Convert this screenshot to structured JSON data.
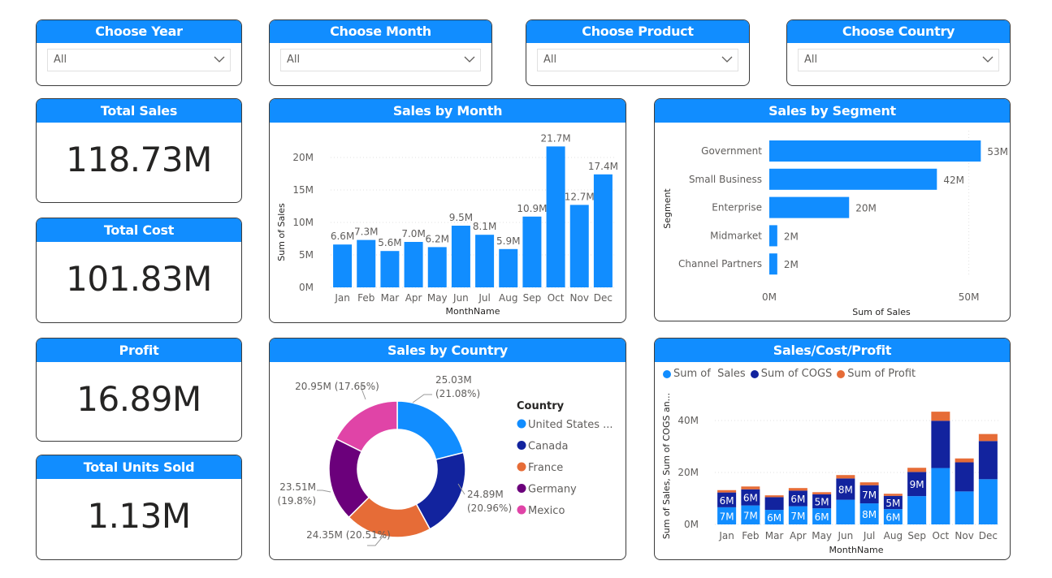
{
  "colors": {
    "accent": "#118dff",
    "dark_blue": "#12239e",
    "orange": "#e66c37",
    "purple": "#6b007b",
    "pink": "#e044a7"
  },
  "slicers": [
    {
      "title": "Choose Year",
      "value": "All"
    },
    {
      "title": "Choose Month",
      "value": "All"
    },
    {
      "title": "Choose Product",
      "value": "All"
    },
    {
      "title": "Choose Country",
      "value": "All"
    }
  ],
  "kpis": [
    {
      "title": "Total Sales",
      "value": "118.73M"
    },
    {
      "title": "Total Cost",
      "value": "101.83M"
    },
    {
      "title": "Profit",
      "value": "16.89M"
    },
    {
      "title": "Total Units Sold",
      "value": "1.13M"
    }
  ],
  "chart_titles": {
    "month": "Sales by Month",
    "segment": "Sales by Segment",
    "country": "Sales by Country",
    "scp": "Sales/Cost/Profit"
  },
  "chart_data": [
    {
      "id": "sales_by_month",
      "type": "bar",
      "title": "Sales by Month",
      "xlabel": "MonthName",
      "ylabel": "Sum of Sales",
      "ylim": [
        0,
        22
      ],
      "yticks": [
        "0M",
        "5M",
        "10M",
        "15M",
        "20M"
      ],
      "categories": [
        "Jan",
        "Feb",
        "Mar",
        "Apr",
        "May",
        "Jun",
        "Jul",
        "Aug",
        "Sep",
        "Oct",
        "Nov",
        "Dec"
      ],
      "values": [
        6.6,
        7.3,
        5.6,
        7.0,
        6.2,
        9.5,
        8.1,
        5.9,
        10.9,
        21.7,
        12.7,
        17.4
      ],
      "labels": [
        "6.6M",
        "7.3M",
        "5.6M",
        "7.0M",
        "6.2M",
        "9.5M",
        "8.1M",
        "5.9M",
        "10.9M",
        "21.7M",
        "12.7M",
        "17.4M"
      ]
    },
    {
      "id": "sales_by_segment",
      "type": "bar",
      "orientation": "horizontal",
      "title": "Sales by Segment",
      "xlabel": "Sum of Sales",
      "ylabel": "Segment",
      "xlim": [
        0,
        57
      ],
      "xticks": [
        "0M",
        "50M"
      ],
      "categories": [
        "Government",
        "Small Business",
        "Enterprise",
        "Midmarket",
        "Channel Partners"
      ],
      "values": [
        53,
        42,
        20,
        2,
        2
      ],
      "labels": [
        "53M",
        "42M",
        "20M",
        "2M",
        "2M"
      ]
    },
    {
      "id": "sales_by_country",
      "type": "pie",
      "donut": true,
      "title": "Sales by Country",
      "legend_title": "Country",
      "slices": [
        {
          "name": "United States ...",
          "value": 25.03,
          "label": "25.03M",
          "pct": "(21.08%)"
        },
        {
          "name": "Canada",
          "value": 24.89,
          "label": "24.89M",
          "pct": "(20.96%)"
        },
        {
          "name": "France",
          "value": 24.35,
          "label": "24.35M (20.51%)",
          "pct": ""
        },
        {
          "name": "Germany",
          "value": 23.51,
          "label": "23.51M",
          "pct": "(19.8%)"
        },
        {
          "name": "Mexico",
          "value": 20.95,
          "label": "20.95M (17.65%)",
          "pct": ""
        }
      ]
    },
    {
      "id": "sales_cost_profit",
      "type": "bar",
      "stacked": true,
      "title": "Sales/Cost/Profit",
      "xlabel": "MonthName",
      "ylabel": "Sum of Sales, Sum of COGS an...",
      "ylim": [
        0,
        45
      ],
      "yticks": [
        "0M",
        "20M",
        "40M"
      ],
      "categories": [
        "Jan",
        "Feb",
        "Mar",
        "Apr",
        "May",
        "Jun",
        "Jul",
        "Aug",
        "Sep",
        "Oct",
        "Nov",
        "Dec"
      ],
      "series": [
        {
          "name": "Sum of  Sales",
          "values": [
            6.6,
            7.3,
            5.6,
            7.0,
            6.2,
            9.5,
            8.1,
            5.9,
            10.9,
            21.7,
            12.7,
            17.4
          ],
          "labels": [
            "7M",
            "7M",
            "6M",
            "7M",
            "6M",
            "",
            "8M",
            "6M",
            "",
            "",
            "",
            ""
          ]
        },
        {
          "name": "Sum of COGS",
          "values": [
            5.7,
            6.2,
            4.9,
            6.0,
            5.4,
            8.2,
            7.0,
            5.1,
            9.3,
            18.2,
            11.2,
            14.7
          ],
          "labels": [
            "6M",
            "6M",
            "",
            "6M",
            "5M",
            "8M",
            "7M",
            "5M",
            "9M",
            "",
            "",
            ""
          ]
        },
        {
          "name": "Sum of Profit",
          "values": [
            0.9,
            1.1,
            0.7,
            1.0,
            0.8,
            1.3,
            1.1,
            0.8,
            1.6,
            3.5,
            1.5,
            2.7
          ],
          "labels": [
            "",
            "",
            "",
            "",
            "",
            "",
            "",
            "",
            "",
            "",
            "",
            ""
          ]
        }
      ]
    }
  ]
}
